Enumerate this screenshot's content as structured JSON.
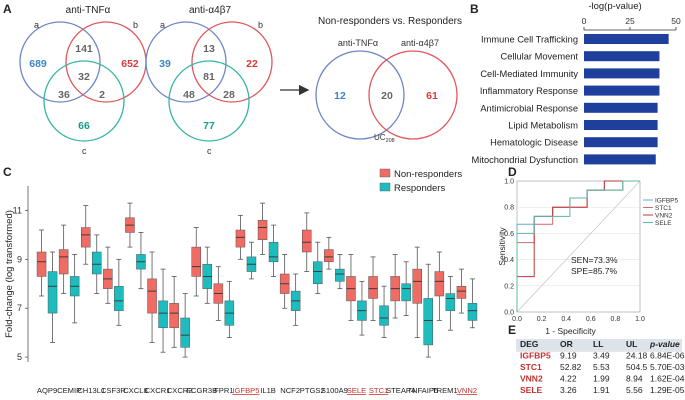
{
  "panels": {
    "a": "A",
    "b": "B",
    "c": "C",
    "d": "D",
    "e": "E"
  },
  "colors": {
    "blue": "#6f86c6",
    "red": "#e0575c",
    "teal": "#35b5a3",
    "bar": "#1f3f9c",
    "nonresp": "#ef6b63",
    "resp": "#1cbcbf",
    "vnum": "#3c85c6",
    "vred": "#d43c3c",
    "vteal": "#1b9a8b"
  },
  "venn_left": {
    "title": "anti-TNFα",
    "labels": [
      "a",
      "b",
      "c"
    ],
    "a_only": "689",
    "b_only": "652",
    "c_only": "66",
    "ab": "141",
    "ac": "36",
    "bc": "2",
    "abc": "32"
  },
  "venn_mid": {
    "title": "anti-α4β7",
    "labels": [
      "a",
      "b",
      "c"
    ],
    "a_only": "39",
    "b_only": "22",
    "c_only": "77",
    "ab": "13",
    "ac": "48",
    "bc": "28",
    "abc": "81"
  },
  "venn_right": {
    "title": "Non-responders vs. Responders",
    "left_label": "anti-TNFα",
    "right_label": "anti-α4β7",
    "left_only": "12",
    "overlap": "20",
    "right_only": "61",
    "uc_label": "UC",
    "uc_sub": "208"
  },
  "chart_data": [
    {
      "type": "bar",
      "panel": "B",
      "title": "-log(p-value)",
      "xticks": [
        "0",
        "25",
        "50"
      ],
      "xlim": [
        0,
        50
      ],
      "categories": [
        "Immune Cell Trafficking",
        "Cellular Movement",
        "Cell-Mediated Immunity",
        "Inflammatory Response",
        "Antimicrobial Response",
        "Lipid Metabolism",
        "Hematologic Disease",
        "Mitochondrial Dysfunction"
      ],
      "values": [
        46,
        41,
        41,
        41,
        40,
        40,
        40,
        39
      ]
    },
    {
      "type": "box",
      "panel": "C",
      "ylabel": "Fold-change (log transformed)",
      "ylim": [
        4.8,
        12
      ],
      "yticks": [
        "5",
        "7",
        "9",
        "11"
      ],
      "legend": [
        "Non-responders",
        "Responders"
      ],
      "categories": [
        "AQP9",
        "CEMIP",
        "CH13L1",
        "CSF3R",
        "CXCL8",
        "CXCR1",
        "CXCR2",
        "FCGR3B",
        "FPR1",
        "IGFBP5",
        "IL1B",
        "NCF2",
        "PTGS2",
        "S100A9",
        "SELE",
        "STC1",
        "STEAP4",
        "TNFAIP6",
        "TREM1",
        "VNN2"
      ],
      "highlighted": [
        "IGFBP5",
        "SELE",
        "STC1",
        "VNN2"
      ],
      "series": [
        {
          "name": "Non-responders",
          "boxes": [
            [
              7.5,
              8.3,
              8.9,
              9.3,
              10.2
            ],
            [
              7.6,
              8.4,
              9.1,
              9.4,
              10.4
            ],
            [
              8.8,
              9.5,
              10.0,
              10.3,
              11.2
            ],
            [
              7.2,
              7.8,
              8.2,
              8.6,
              9.5
            ],
            [
              9.5,
              10.1,
              10.4,
              10.7,
              11.3
            ],
            [
              5.6,
              6.8,
              7.7,
              8.2,
              9.3
            ],
            [
              5.4,
              6.2,
              6.8,
              7.2,
              8.3
            ],
            [
              7.5,
              8.3,
              8.7,
              9.5,
              10.3
            ],
            [
              6.5,
              7.2,
              7.6,
              8.0,
              8.7
            ],
            [
              9.0,
              9.5,
              9.9,
              10.2,
              10.8
            ],
            [
              9.2,
              9.8,
              10.3,
              10.6,
              11.3
            ],
            [
              7.0,
              7.6,
              8.0,
              8.4,
              9.2
            ],
            [
              8.5,
              9.3,
              9.7,
              10.2,
              10.9
            ],
            [
              8.6,
              8.9,
              9.1,
              9.4,
              9.9
            ],
            [
              6.5,
              7.3,
              7.8,
              8.3,
              9.2
            ],
            [
              6.5,
              7.4,
              7.8,
              8.3,
              9.1
            ],
            [
              6.6,
              7.3,
              7.8,
              8.3,
              9.2
            ],
            [
              5.8,
              7.2,
              8.1,
              8.6,
              9.5
            ],
            [
              6.5,
              7.5,
              8.1,
              8.5,
              9.3
            ],
            [
              6.8,
              7.4,
              7.7,
              7.9,
              8.6
            ]
          ]
        },
        {
          "name": "Responders",
          "boxes": [
            [
              5.6,
              6.8,
              7.9,
              8.5,
              9.3
            ],
            [
              6.4,
              7.5,
              7.9,
              8.3,
              9.2
            ],
            [
              7.6,
              8.4,
              8.8,
              9.3,
              10.0
            ],
            [
              6.3,
              6.9,
              7.3,
              7.9,
              9.0
            ],
            [
              7.8,
              8.6,
              8.9,
              9.2,
              10.1
            ],
            [
              5.2,
              6.2,
              6.8,
              7.3,
              8.6
            ],
            [
              5.0,
              5.4,
              5.9,
              6.6,
              7.6
            ],
            [
              7.2,
              7.8,
              8.3,
              8.8,
              9.5
            ],
            [
              5.8,
              6.3,
              6.8,
              7.3,
              8.1
            ],
            [
              8.2,
              8.5,
              8.8,
              9.1,
              9.7
            ],
            [
              8.3,
              8.9,
              9.1,
              9.7,
              10.4
            ],
            [
              6.3,
              6.9,
              7.3,
              7.7,
              8.4
            ],
            [
              7.6,
              8.0,
              8.5,
              8.9,
              9.7
            ],
            [
              7.8,
              8.1,
              8.4,
              8.6,
              9.2
            ],
            [
              5.9,
              6.5,
              6.9,
              7.3,
              8.1
            ],
            [
              5.8,
              6.3,
              6.6,
              7.1,
              7.9
            ],
            [
              6.7,
              7.3,
              7.8,
              8.0,
              8.9
            ],
            [
              5.0,
              5.5,
              6.5,
              7.4,
              8.8
            ],
            [
              6.1,
              6.9,
              7.4,
              7.6,
              8.3
            ],
            [
              6.2,
              6.5,
              6.9,
              7.2,
              8.2
            ]
          ]
        }
      ]
    },
    {
      "type": "line",
      "panel": "D",
      "xlabel": "1 - Specificity",
      "ylabel": "Sensitivity",
      "xlim": [
        0,
        1
      ],
      "ylim": [
        0,
        1
      ],
      "xticks": [
        "0.0",
        "0.2",
        "0.4",
        "0.6",
        "0.8",
        "1.0"
      ],
      "yticks": [
        "0.0",
        "0.2",
        "0.4",
        "0.6",
        "0.8",
        "1.0"
      ],
      "annotation": [
        "SEN=73.3%",
        "SPE=85.7%"
      ],
      "series": [
        {
          "name": "IGFBP5",
          "color": "#6aa9d8",
          "x": [
            0,
            0,
            0.14,
            0.14,
            0.29,
            0.29,
            0.43,
            0.43,
            0.57,
            0.57,
            0.71,
            0.71,
            1
          ],
          "y": [
            0,
            0.67,
            0.67,
            0.73,
            0.73,
            0.8,
            0.8,
            0.87,
            0.87,
            0.93,
            0.93,
            1,
            1
          ]
        },
        {
          "name": "STC1",
          "color": "#d16a6a",
          "x": [
            0,
            0,
            0.14,
            0.14,
            0.29,
            0.29,
            0.57,
            0.57,
            0.86,
            0.86,
            1
          ],
          "y": [
            0,
            0.53,
            0.53,
            0.67,
            0.67,
            0.8,
            0.8,
            0.93,
            0.93,
            1,
            1
          ]
        },
        {
          "name": "VNN2",
          "color": "#c03a3a",
          "x": [
            0,
            0,
            0.14,
            0.14,
            0.29,
            0.29,
            0.57,
            0.57,
            0.71,
            0.71,
            1
          ],
          "y": [
            0,
            0.27,
            0.27,
            0.73,
            0.73,
            0.8,
            0.8,
            0.93,
            0.93,
            1,
            1
          ]
        },
        {
          "name": "SELE",
          "color": "#58b8a8",
          "x": [
            0,
            0,
            0.14,
            0.14,
            0.43,
            0.43,
            0.57,
            0.57,
            0.86,
            0.86,
            1
          ],
          "y": [
            0,
            0.6,
            0.6,
            0.73,
            0.73,
            0.87,
            0.87,
            0.93,
            0.93,
            1,
            1
          ]
        }
      ]
    },
    {
      "type": "table",
      "panel": "E",
      "columns": [
        "DEG",
        "OR",
        "LL",
        "UL",
        "p-value"
      ],
      "rows": [
        [
          "IGFBP5",
          "9.19",
          "3.49",
          "24.18",
          "6.84E-06"
        ],
        [
          "STC1",
          "52.82",
          "5.53",
          "504.5",
          "5.70E-03"
        ],
        [
          "VNN2",
          "4.22",
          "1.99",
          "8.94",
          "1.62E-04"
        ],
        [
          "SELE",
          "3.26",
          "1.91",
          "5.56",
          "1.29E-05"
        ]
      ]
    }
  ]
}
